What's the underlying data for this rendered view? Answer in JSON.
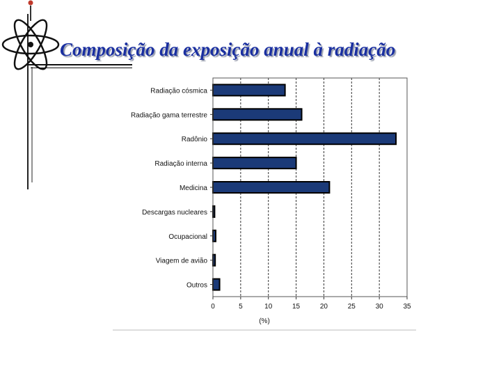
{
  "slide": {
    "title": "Composição da exposição anual à radiação"
  },
  "colors": {
    "bar_fill": "#1b3a78",
    "bar_stroke": "#000000",
    "title": "#1a2fa0"
  },
  "icons": {
    "logo": "atom-logo-icon"
  },
  "chart_data": {
    "type": "bar",
    "orientation": "horizontal",
    "categories": [
      "Radiação cósmica",
      "Radiação gama terrestre",
      "Radônio",
      "Radiação interna",
      "Medicina",
      "Descargas nucleares",
      "Ocupacional",
      "Viagem de avião",
      "Outros"
    ],
    "values": [
      13,
      16,
      33,
      15,
      21,
      0.3,
      0.5,
      0.4,
      1.2
    ],
    "xlabel": "(%)",
    "xlim": [
      0,
      35
    ],
    "xticks": [
      "0",
      "5",
      "10",
      "15",
      "20",
      "25",
      "30",
      "35"
    ],
    "grid": "vertical-dashed"
  }
}
